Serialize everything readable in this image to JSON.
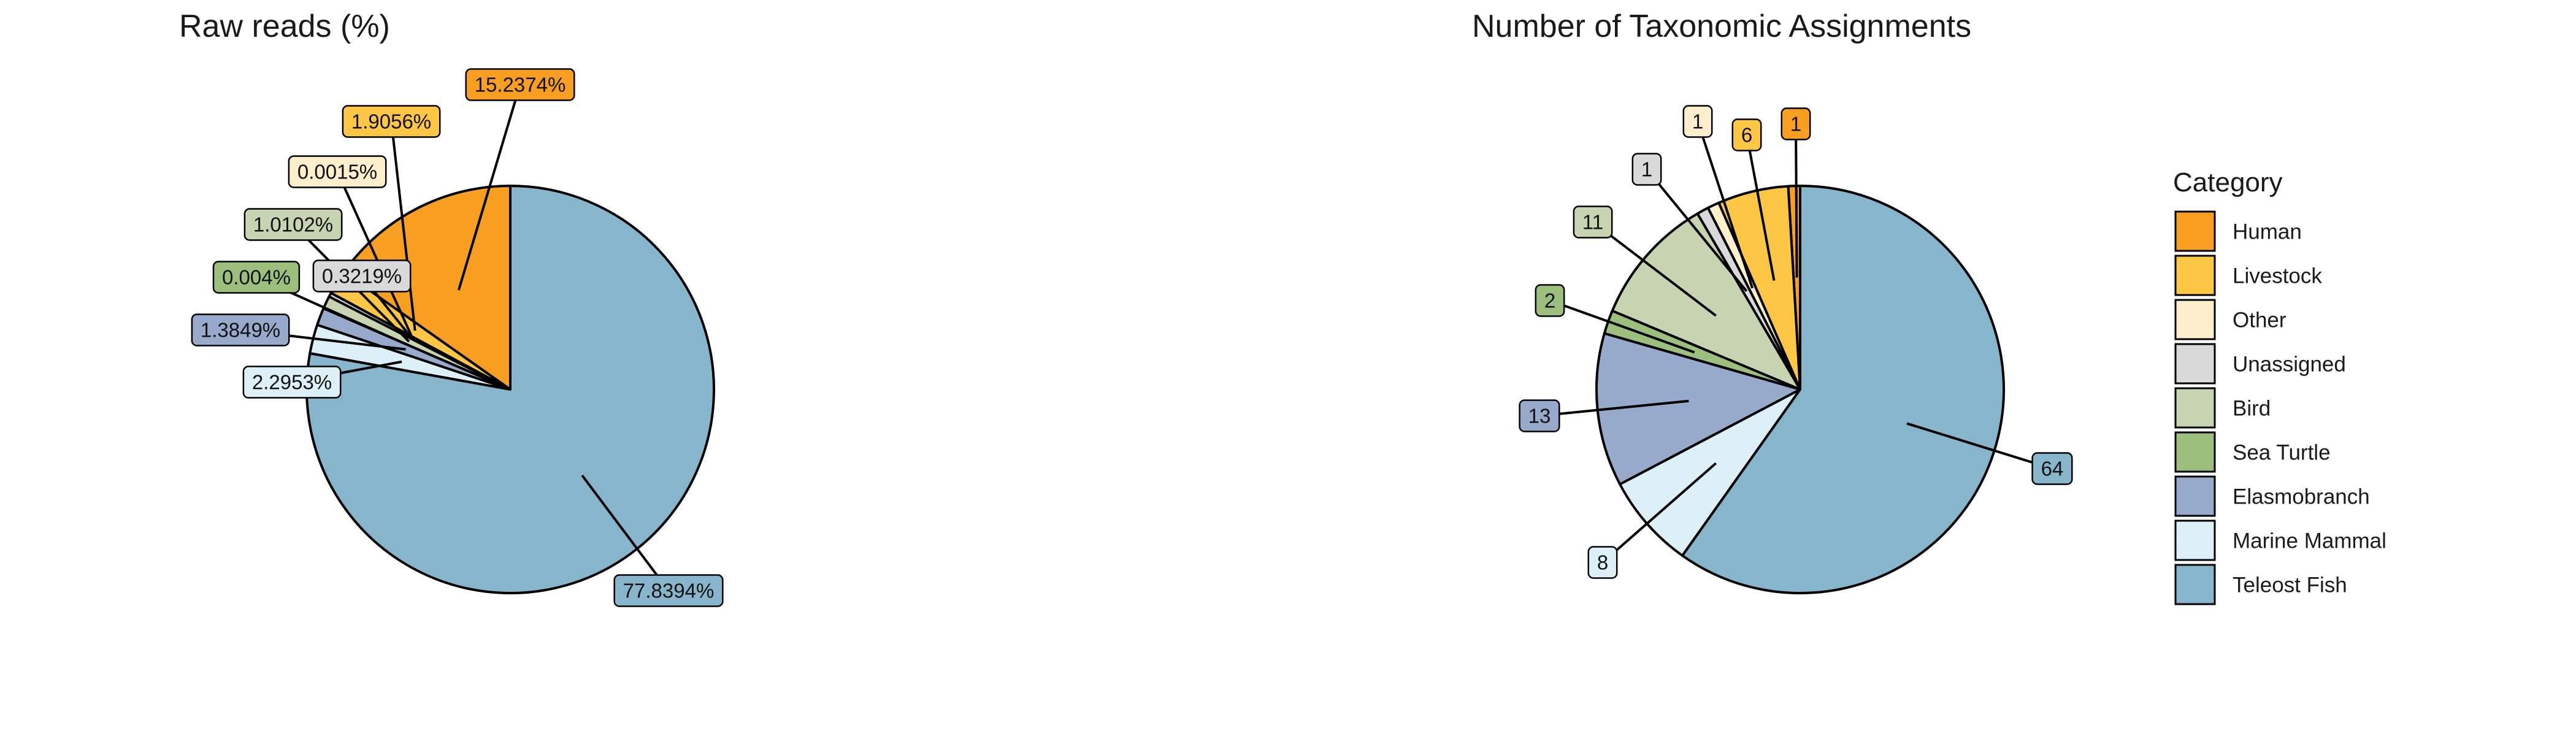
{
  "chart_data": [
    {
      "type": "pie",
      "title": "Raw reads (%)",
      "categories": [
        "Human",
        "Livestock",
        "Other",
        "Unassigned",
        "Bird",
        "Sea Turtle",
        "Elasmobranch",
        "Marine Mammal",
        "Teleost Fish"
      ],
      "values": [
        15.2374,
        1.9056,
        0.0015,
        0.3219,
        1.0102,
        0.004,
        1.3849,
        2.2953,
        77.8394
      ],
      "labels": [
        "15.2374%",
        "1.9056%",
        "0.0015%",
        "0.3219%",
        "1.0102%",
        "0.004%",
        "1.3849%",
        "2.2953%",
        "77.8394%"
      ]
    },
    {
      "type": "pie",
      "title": "Number of Taxonomic Assignments",
      "categories": [
        "Human",
        "Livestock",
        "Other",
        "Unassigned",
        "Bird",
        "Sea Turtle",
        "Elasmobranch",
        "Marine Mammal",
        "Teleost Fish"
      ],
      "values": [
        1,
        6,
        1,
        1,
        11,
        2,
        13,
        8,
        64
      ],
      "labels": [
        "1",
        "6",
        "1",
        "1",
        "11",
        "2",
        "13",
        "8",
        "64"
      ]
    }
  ],
  "legend": {
    "title": "Category",
    "placement": "right",
    "items": [
      {
        "label": "Human",
        "color": "#F89F22"
      },
      {
        "label": "Livestock",
        "color": "#FDC645"
      },
      {
        "label": "Other",
        "color": "#FEEFCC"
      },
      {
        "label": "Unassigned",
        "color": "#D9D9D9"
      },
      {
        "label": "Bird",
        "color": "#C8D4B1"
      },
      {
        "label": "Sea Turtle",
        "color": "#9CBF7E"
      },
      {
        "label": "Elasmobranch",
        "color": "#98AACC"
      },
      {
        "label": "Marine Mammal",
        "color": "#DDF0F8"
      },
      {
        "label": "Teleost Fish",
        "color": "#87B5CC"
      }
    ]
  }
}
